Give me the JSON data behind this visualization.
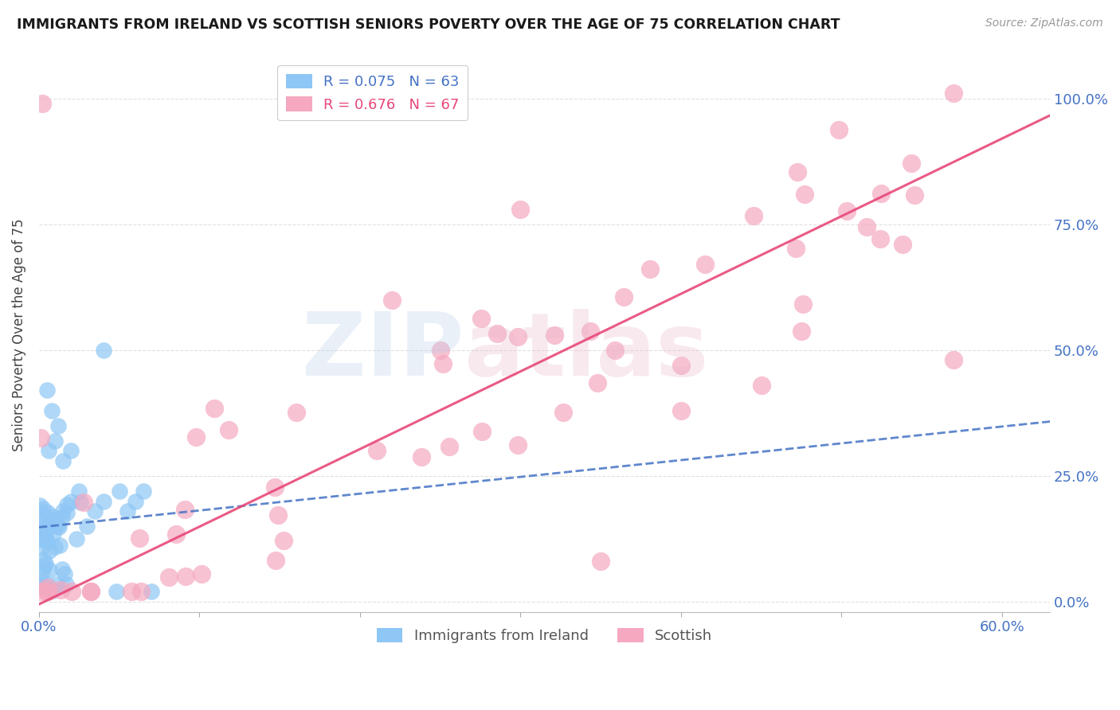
{
  "title": "IMMIGRANTS FROM IRELAND VS SCOTTISH SENIORS POVERTY OVER THE AGE OF 75 CORRELATION CHART",
  "source": "Source: ZipAtlas.com",
  "ylabel": "Seniors Poverty Over the Age of 75",
  "ytick_labels": [
    "0.0%",
    "25.0%",
    "50.0%",
    "75.0%",
    "100.0%"
  ],
  "ytick_values": [
    0.0,
    0.25,
    0.5,
    0.75,
    1.0
  ],
  "xtick_labels": [
    "0.0%",
    "60.0%"
  ],
  "xtick_show": [
    0.0,
    0.6
  ],
  "xlim": [
    0.0,
    0.63
  ],
  "ylim": [
    -0.02,
    1.08
  ],
  "background_color": "#ffffff",
  "grid_color": "#dddddd",
  "legend_ireland_label": "Immigrants from Ireland",
  "legend_scottish_label": "Scottish",
  "ireland_R": "R = 0.075",
  "ireland_N": "N = 63",
  "scottish_R": "R = 0.676",
  "scottish_N": "N = 67",
  "ireland_color": "#8EC6F5",
  "scottish_color": "#F5A8C0",
  "ireland_line_color": "#4472C4",
  "scottish_line_color": "#E84878",
  "title_color": "#1a1a1a",
  "axis_label_color": "#4472C4",
  "ireland_line_x0": 0.0,
  "ireland_line_y0": 0.148,
  "ireland_line_x1": 0.6,
  "ireland_line_y1": 0.348,
  "scottish_line_x0": 0.0,
  "scottish_line_y0": -0.005,
  "scottish_line_x1": 0.6,
  "scottish_line_y1": 0.92
}
